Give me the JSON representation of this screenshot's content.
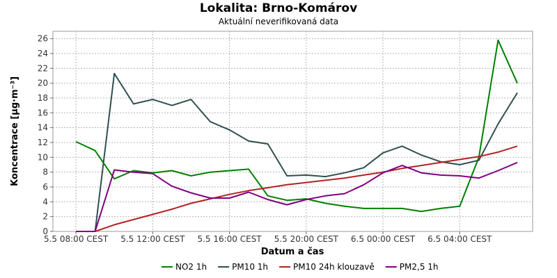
{
  "header": {
    "title": "Lokalita: Brno-Komárov",
    "subtitle": "Aktuální neverifikovaná data"
  },
  "chart_data": {
    "type": "line",
    "title": "Lokalita: Brno-Komárov",
    "subtitle": "Aktuální neverifikovaná data",
    "xlabel": "Datum a čas",
    "ylabel": "Koncentrace [µg·m⁻³]",
    "ylim": [
      0,
      27
    ],
    "yticks": [
      0,
      2,
      4,
      6,
      8,
      10,
      12,
      14,
      16,
      18,
      20,
      22,
      24,
      26
    ],
    "x_unit": "hours since 5.5 08:00 CEST",
    "xlim": [
      -1.2,
      23.8
    ],
    "xticks": [
      {
        "x": 0,
        "label": "5.5 08:00 CEST"
      },
      {
        "x": 4,
        "label": "5.5 12:00 CEST"
      },
      {
        "x": 8,
        "label": "5.5 16:00 CEST"
      },
      {
        "x": 12,
        "label": "5.5 20:00 CEST"
      },
      {
        "x": 16,
        "label": "6.5 00:00 CEST"
      },
      {
        "x": 20,
        "label": "6.5 04:00 CEST"
      }
    ],
    "grid": true,
    "legend_position": "bottom",
    "series": [
      {
        "name": "NO2 1h",
        "color": "#008000",
        "x": [
          0,
          1,
          2,
          3,
          4,
          5,
          6,
          7,
          8,
          9,
          10,
          11,
          12,
          13,
          14,
          15,
          16,
          17,
          18,
          19,
          20,
          21,
          22,
          23
        ],
        "values": [
          12.1,
          10.9,
          7.1,
          8.2,
          7.9,
          8.2,
          7.5,
          8.0,
          8.2,
          8.4,
          4.8,
          4.2,
          4.4,
          3.8,
          3.4,
          3.1,
          3.1,
          3.1,
          2.7,
          3.1,
          3.4,
          10.0,
          25.8,
          20.0
        ]
      },
      {
        "name": "PM10 1h",
        "color": "#2f4f4f",
        "x": [
          0,
          1,
          2,
          3,
          4,
          5,
          6,
          7,
          8,
          9,
          10,
          11,
          12,
          13,
          14,
          15,
          16,
          17,
          18,
          19,
          20,
          21,
          22,
          23
        ],
        "values": [
          0,
          0,
          21.3,
          17.2,
          17.8,
          17.0,
          17.8,
          14.8,
          13.7,
          12.2,
          11.8,
          7.5,
          7.6,
          7.4,
          7.9,
          8.6,
          10.6,
          11.5,
          10.3,
          9.4,
          9.0,
          9.6,
          14.5,
          18.7
        ]
      },
      {
        "name": "PM10 24h klouzavě",
        "color": "#b22222",
        "x": [
          0,
          1,
          2,
          3,
          4,
          5,
          6,
          7,
          8,
          9,
          10,
          11,
          12,
          13,
          14,
          15,
          16,
          17,
          18,
          19,
          20,
          21,
          22,
          23
        ],
        "values": [
          0,
          0,
          0.9,
          1.6,
          2.3,
          3.0,
          3.8,
          4.4,
          5.0,
          5.5,
          5.9,
          6.3,
          6.6,
          6.9,
          7.2,
          7.6,
          8.0,
          8.5,
          8.9,
          9.3,
          9.7,
          10.1,
          10.7,
          11.5
        ]
      },
      {
        "name": "PM2,5 1h",
        "color": "#800080",
        "x": [
          0,
          1,
          2,
          3,
          4,
          5,
          6,
          7,
          8,
          9,
          10,
          11,
          12,
          13,
          14,
          15,
          16,
          17,
          18,
          19,
          20,
          21,
          22,
          23
        ],
        "values": [
          0,
          0,
          8.3,
          8.0,
          7.8,
          6.1,
          5.2,
          4.5,
          4.5,
          5.3,
          4.3,
          3.6,
          4.3,
          4.8,
          5.1,
          6.3,
          7.9,
          8.9,
          7.9,
          7.6,
          7.5,
          7.2,
          8.2,
          9.3
        ]
      }
    ]
  }
}
